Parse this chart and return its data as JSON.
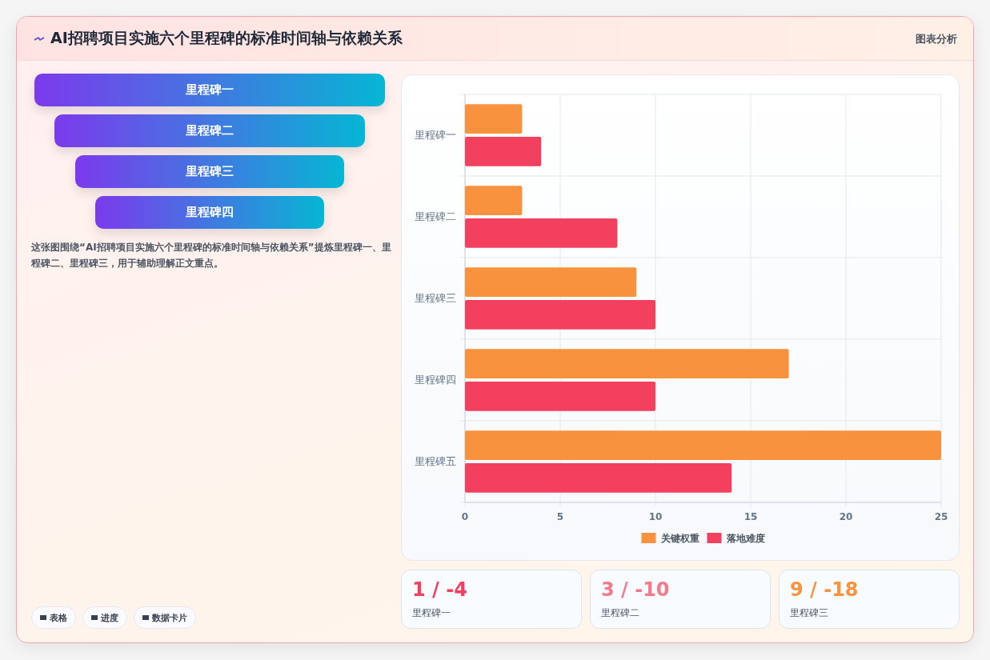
{
  "chart_data": [
    {
      "type": "other",
      "title": "AI招聘项目实施六个里程碑的标准时间轴与依赖关系",
      "annotations": [
        "图表分析"
      ]
    },
    {
      "type": "bar",
      "orientation": "horizontal",
      "categories": [
        "里程碑一",
        "里程碑二",
        "里程碑三",
        "里程碑四",
        "里程碑五"
      ],
      "series": [
        {
          "name": "关键权重",
          "color": "#f9923f",
          "values": [
            3,
            3,
            9,
            17,
            25
          ]
        },
        {
          "name": "落地难度",
          "color": "#f2405e",
          "values": [
            4,
            8,
            10,
            10,
            14
          ]
        }
      ],
      "xlim": [
        0,
        25
      ],
      "xticks": [
        0,
        5,
        10,
        15,
        20,
        25
      ],
      "grid": true,
      "legend": "bottom"
    },
    {
      "type": "other",
      "categories": [
        "里程碑一",
        "里程碑二",
        "里程碑三",
        "里程碑四"
      ],
      "annotations": [
        "这张图围绕“AI招聘项目实施六个里程碑的标准时间轴与依赖关系”提炼里程碑一、里程碑二、里程碑三，用于辅助理解正文重点。",
        "表格",
        "进度",
        "数据卡片"
      ]
    },
    {
      "type": "other",
      "categories": [
        "里程碑一",
        "里程碑二",
        "里程碑三"
      ],
      "annotations": [
        "1 / -4",
        "3 / -10",
        "9 / -18"
      ]
    }
  ]
}
